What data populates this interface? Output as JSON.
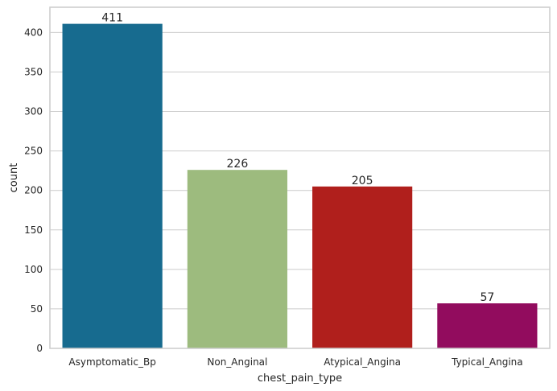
{
  "chart_data": {
    "type": "bar",
    "categories": [
      "Asymptomatic_Bp",
      "Non_Anginal",
      "Atypical_Angina",
      "Typical_Angina"
    ],
    "values": [
      411,
      226,
      205,
      57
    ],
    "data_labels": [
      "411",
      "226",
      "205",
      "57"
    ],
    "colors": [
      "#176b8f",
      "#9dbb7e",
      "#b01f1c",
      "#920c5e"
    ],
    "title": "",
    "xlabel": "chest_pain_type",
    "ylabel": "count",
    "ylim": [
      0,
      432
    ],
    "yticks": [
      0,
      50,
      100,
      150,
      200,
      250,
      300,
      350,
      400
    ],
    "ytick_labels": [
      "0",
      "50",
      "100",
      "150",
      "200",
      "250",
      "300",
      "350",
      "400"
    ],
    "grid": true,
    "grid_color": "#cccccc",
    "frame_color": "#cccccc"
  }
}
